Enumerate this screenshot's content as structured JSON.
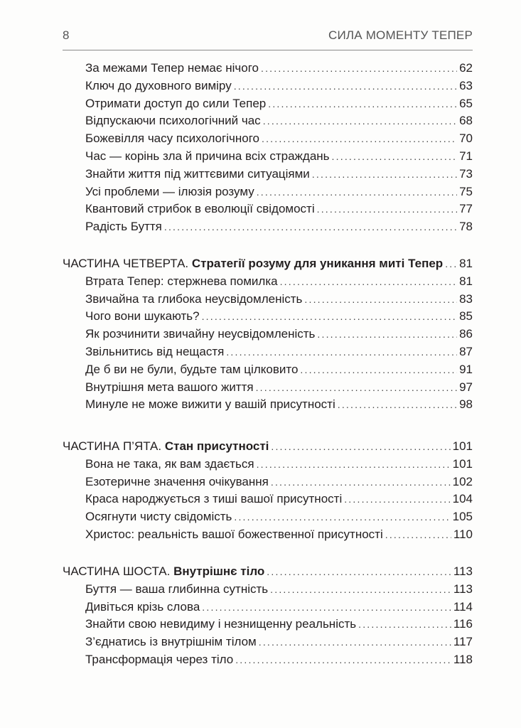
{
  "header": {
    "page_number": "8",
    "running_title": "СИЛА МОМЕНТУ ТЕПЕР"
  },
  "sections": [
    {
      "part": "",
      "title": "",
      "page": "",
      "entries": [
        {
          "title": "За межами Тепер немає нічого",
          "page": "62"
        },
        {
          "title": "Ключ до духовного виміру",
          "page": "63"
        },
        {
          "title": "Отримати доступ до сили Тепер",
          "page": "65"
        },
        {
          "title": "Відпускаючи психологічний час",
          "page": "68"
        },
        {
          "title": "Божевілля часу психологічного",
          "page": "70"
        },
        {
          "title": "Час — корінь зла й причина всіх страждань",
          "page": "71"
        },
        {
          "title": "Знайти життя під життєвими ситуаціями",
          "page": "73"
        },
        {
          "title": "Усі проблеми — ілюзія розуму",
          "page": "75"
        },
        {
          "title": "Квантовий стрибок в еволюції свідомості",
          "page": "77"
        },
        {
          "title": "Радість Буття",
          "page": "78"
        }
      ]
    },
    {
      "part": "ЧАСТИНА ЧЕТВЕРТА.",
      "title": "Стратегії розуму для уникання миті Тепер",
      "page": "81",
      "entries": [
        {
          "title": "Втрата Тепер: стержнева помилка",
          "page": "81"
        },
        {
          "title": "Звичайна та глибока неусвідомленість",
          "page": "83"
        },
        {
          "title": "Чого вони шукають?",
          "page": "85"
        },
        {
          "title": "Як розчинити звичайну неусвідомленість",
          "page": "86"
        },
        {
          "title": "Звільнитись від нещастя",
          "page": "87"
        },
        {
          "title": "Де б ви не були, будьте там цілковито",
          "page": "91"
        },
        {
          "title": "Внутрішня мета вашого життя",
          "page": "97"
        },
        {
          "title": "Минуле не може вижити у вашій присутності",
          "page": "98"
        }
      ]
    },
    {
      "part": "ЧАСТИНА П’ЯТА.",
      "title": "Стан присутності",
      "page": "101",
      "entries": [
        {
          "title": "Вона не така, як вам здається",
          "page": "101"
        },
        {
          "title": "Езотеричне значення очікування",
          "page": "102"
        },
        {
          "title": "Краса народжується з тиші вашої присутності",
          "page": "104"
        },
        {
          "title": "Осягнути чисту свідомість",
          "page": "105"
        },
        {
          "title": "Христос: реальність вашої божественної присутності",
          "page": "110"
        }
      ]
    },
    {
      "part": "ЧАСТИНА ШОСТА.",
      "title": "Внутрішнє тіло",
      "page": "113",
      "entries": [
        {
          "title": "Буття — ваша глибинна сутність",
          "page": "113"
        },
        {
          "title": "Дивіться крізь слова",
          "page": "114"
        },
        {
          "title": "Знайти свою невидиму і незнищенну реальність",
          "page": "116"
        },
        {
          "title": "З’єднатись із внутрішнім тілом",
          "page": "117"
        },
        {
          "title": "Трансформація через тіло",
          "page": "118"
        }
      ]
    }
  ]
}
